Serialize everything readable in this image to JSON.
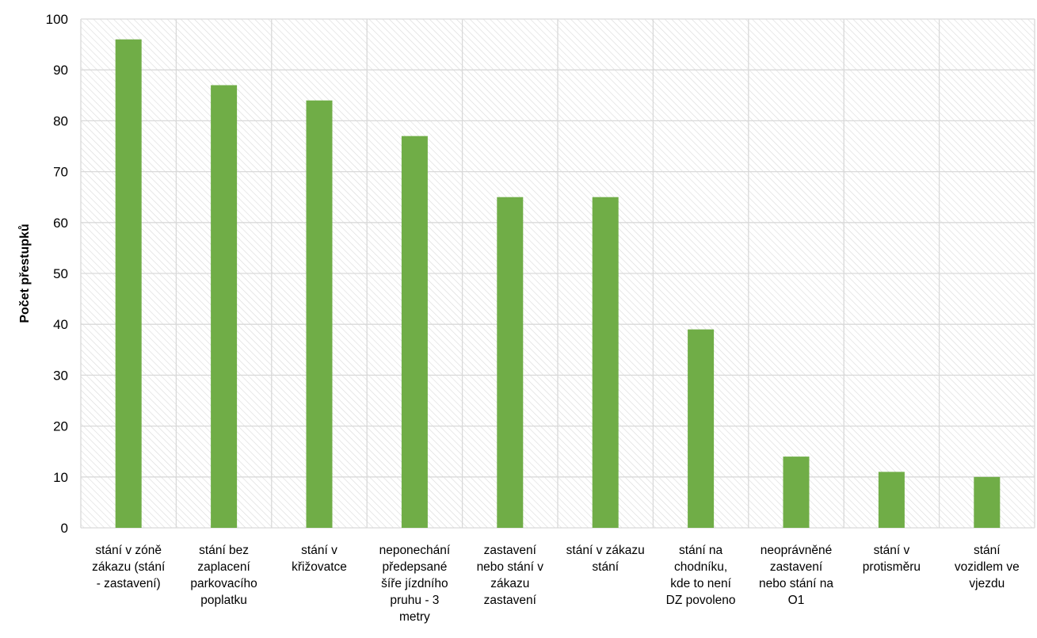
{
  "chart_data": {
    "type": "bar",
    "title": "",
    "xlabel": "",
    "ylabel": "Počet přestupků",
    "ylim": [
      0,
      100
    ],
    "yticks": [
      0,
      10,
      20,
      30,
      40,
      50,
      60,
      70,
      80,
      90,
      100
    ],
    "grid": true,
    "legend": "none",
    "categories": [
      "stání v zóně zákazu (stání - zastavení)",
      "stání bez zaplacení parkovacího poplatku",
      "stání v křižovatce",
      "neponechání předepsané šíře jízdního pruhu - 3 metry",
      "zastavení nebo stání v zákazu zastavení",
      "stání v zákazu stání",
      "stání na chodníku, kde to není DZ povoleno",
      "neoprávněné zastavení nebo stání na O1",
      "stání v protisměru",
      "stání vozidlem ve vjezdu"
    ],
    "category_lines": [
      [
        "stání v zóně",
        "zákazu (stání",
        "- zastavení)"
      ],
      [
        "stání bez",
        "zaplacení",
        "parkovacího",
        "poplatku"
      ],
      [
        "stání v",
        "křižovatce"
      ],
      [
        "neponechání",
        "předepsané",
        "šíře jízdního",
        "pruhu - 3",
        "metry"
      ],
      [
        "zastavení",
        "nebo stání v",
        "zákazu",
        "zastavení"
      ],
      [
        "stání v zákazu",
        "stání"
      ],
      [
        "stání na",
        "chodníku,",
        "kde to není",
        "DZ povoleno"
      ],
      [
        "neoprávněné",
        "zastavení",
        "nebo stání na",
        "O1"
      ],
      [
        "stání v",
        "protisměru"
      ],
      [
        "stání",
        "vozidlem ve",
        "vjezdu"
      ]
    ],
    "values": [
      96,
      87,
      84,
      77,
      65,
      65,
      39,
      14,
      11,
      10
    ]
  },
  "colors": {
    "bar": "#70ad47",
    "grid": "#d9d9d9",
    "hatch": "#d9d9d9",
    "text": "#000000"
  }
}
